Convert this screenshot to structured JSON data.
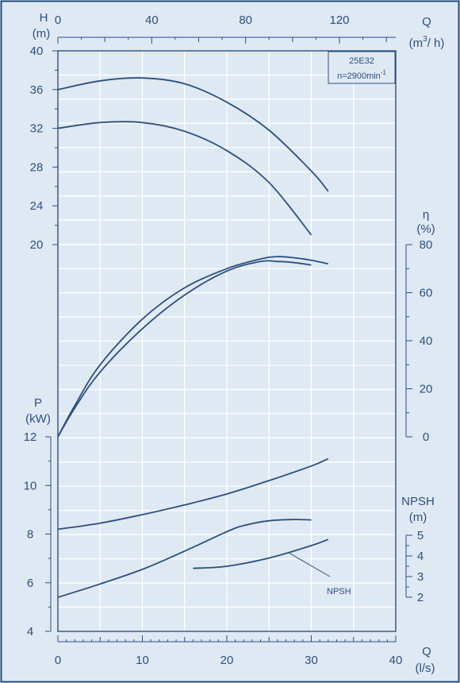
{
  "colors": {
    "background": "#dfe9f3",
    "line": "#2b4f80",
    "grid": "#ffffff"
  },
  "chart_data": {
    "type": "line",
    "model": "25E32",
    "speed_prefix": "n=2900min",
    "speed_exp": "-1",
    "grid": true,
    "x_axes": {
      "q_ls": {
        "name": "Q",
        "unit": "(l/s)",
        "ticks": [
          "0",
          "10",
          "20",
          "30",
          "40"
        ],
        "range": [
          0,
          40
        ]
      },
      "q_m3h": {
        "name": "Q",
        "unit_pre": "(m",
        "unit_exp": "3",
        "unit_post": "/ h)",
        "ticks": [
          "0",
          "40",
          "80",
          "120"
        ],
        "range": [
          0,
          144
        ]
      }
    },
    "y_axes": {
      "head": {
        "name": "H",
        "unit": "(m)",
        "ticks": [
          "20",
          "24",
          "28",
          "32",
          "36",
          "40"
        ],
        "range": [
          20,
          40
        ]
      },
      "efficiency": {
        "name": "η",
        "unit": "(%)",
        "ticks": [
          "0",
          "20",
          "40",
          "60",
          "80"
        ],
        "range": [
          0,
          80
        ]
      },
      "power": {
        "name": "P",
        "unit": "(kW)",
        "ticks": [
          "4",
          "6",
          "8",
          "10",
          "12"
        ],
        "range": [
          4,
          12
        ]
      },
      "npsh": {
        "name": "NPSH",
        "unit": "(m)",
        "ticks": [
          "2",
          "3",
          "4",
          "5"
        ],
        "range": [
          2,
          5
        ]
      }
    },
    "npsh_label": "NPSH",
    "series": [
      {
        "axis": "head",
        "x": [
          0,
          5,
          10,
          15,
          20,
          25,
          30,
          32
        ],
        "y": [
          36.0,
          36.9,
          37.2,
          36.6,
          34.7,
          31.8,
          27.6,
          25.5
        ]
      },
      {
        "axis": "head",
        "x": [
          0,
          5,
          10,
          15,
          20,
          25,
          30
        ],
        "y": [
          32.0,
          32.6,
          32.6,
          31.7,
          29.7,
          26.4,
          21.0
        ]
      },
      {
        "axis": "efficiency",
        "x": [
          0,
          2,
          5,
          10,
          15,
          20,
          24,
          26,
          28,
          30,
          32
        ],
        "y": [
          0,
          13,
          30,
          49,
          62,
          70,
          74,
          75,
          74.5,
          73.5,
          72
        ]
      },
      {
        "axis": "efficiency",
        "x": [
          0,
          2,
          5,
          10,
          15,
          20,
          24,
          26,
          28,
          30
        ],
        "y": [
          0,
          12,
          27,
          45,
          59,
          69,
          73,
          73,
          72.5,
          71.5
        ]
      },
      {
        "axis": "power",
        "x": [
          0,
          5,
          10,
          15,
          20,
          25,
          30,
          32
        ],
        "y": [
          8.2,
          8.45,
          8.8,
          9.2,
          9.65,
          10.2,
          10.8,
          11.1
        ]
      },
      {
        "axis": "power",
        "x": [
          0,
          5,
          10,
          15,
          20,
          22,
          25,
          28,
          30
        ],
        "y": [
          5.4,
          5.95,
          6.55,
          7.3,
          8.1,
          8.35,
          8.55,
          8.6,
          8.58
        ]
      },
      {
        "axis": "npsh",
        "x": [
          16,
          20,
          25,
          30,
          32
        ],
        "y": [
          3.4,
          3.5,
          3.9,
          4.5,
          4.8
        ]
      }
    ]
  }
}
